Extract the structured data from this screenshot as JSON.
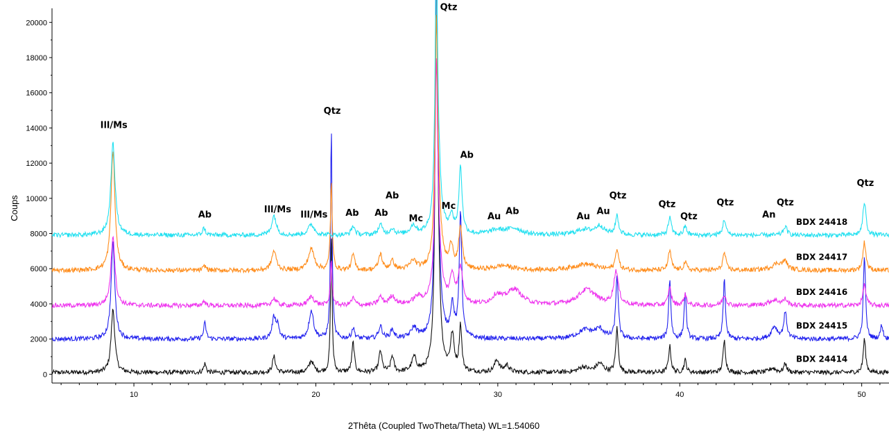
{
  "chart_data": {
    "type": "line",
    "xlabel": "2Thêta (Coupled TwoTheta/Theta) WL=1.54060",
    "ylabel": "Coups",
    "xlim": [
      5.5,
      51.5
    ],
    "ylim": [
      -500,
      20800
    ],
    "x_ticks": [
      10,
      20,
      30,
      40,
      50
    ],
    "y_ticks": [
      0,
      2000,
      4000,
      6000,
      8000,
      10000,
      12000,
      14000,
      16000,
      18000,
      20000
    ],
    "grid": false,
    "legend": "labels at right end of each trace",
    "series": [
      {
        "name": "BDX 24418",
        "color": "#22e0f0",
        "baseline": 7900,
        "peaks": [
          [
            8.85,
            5200,
            0.14
          ],
          [
            13.85,
            400,
            0.1
          ],
          [
            17.7,
            1100,
            0.15
          ],
          [
            19.75,
            600,
            0.2
          ],
          [
            22.05,
            500,
            0.12
          ],
          [
            23.55,
            550,
            0.14
          ],
          [
            24.2,
            350,
            0.14
          ],
          [
            25.35,
            500,
            0.2
          ],
          [
            26.62,
            12500,
            0.08
          ],
          [
            26.7,
            3800,
            0.18
          ],
          [
            27.45,
            900,
            0.15
          ],
          [
            27.95,
            3800,
            0.1
          ],
          [
            29.95,
            250,
            0.5
          ],
          [
            30.9,
            350,
            0.5
          ],
          [
            34.7,
            300,
            0.5
          ],
          [
            35.6,
            500,
            0.3
          ],
          [
            36.55,
            1100,
            0.1
          ],
          [
            39.45,
            1000,
            0.1
          ],
          [
            40.3,
            500,
            0.1
          ],
          [
            42.45,
            900,
            0.1
          ],
          [
            45.8,
            500,
            0.12
          ],
          [
            50.15,
            1900,
            0.1
          ]
        ]
      },
      {
        "name": "BDX 24417",
        "color": "#ff8c1a",
        "baseline": 5900,
        "peaks": [
          [
            8.85,
            6800,
            0.13
          ],
          [
            13.9,
            250,
            0.1
          ],
          [
            17.7,
            1100,
            0.15
          ],
          [
            19.75,
            1200,
            0.2
          ],
          [
            20.85,
            5000,
            0.06
          ],
          [
            22.05,
            900,
            0.1
          ],
          [
            23.55,
            900,
            0.12
          ],
          [
            24.2,
            500,
            0.14
          ],
          [
            25.35,
            500,
            0.2
          ],
          [
            26.62,
            11000,
            0.08
          ],
          [
            26.7,
            4000,
            0.18
          ],
          [
            27.45,
            1300,
            0.12
          ],
          [
            27.95,
            2300,
            0.12
          ],
          [
            30.3,
            250,
            0.6
          ],
          [
            34.8,
            350,
            0.8
          ],
          [
            36.55,
            1200,
            0.1
          ],
          [
            39.45,
            1100,
            0.1
          ],
          [
            40.3,
            450,
            0.1
          ],
          [
            42.45,
            1000,
            0.1
          ],
          [
            45.4,
            400,
            0.4
          ],
          [
            45.8,
            400,
            0.12
          ],
          [
            50.15,
            1600,
            0.1
          ]
        ]
      },
      {
        "name": "BDX 24416",
        "color": "#ee33ee",
        "baseline": 3900,
        "peaks": [
          [
            8.85,
            4000,
            0.13
          ],
          [
            13.85,
            250,
            0.1
          ],
          [
            17.7,
            400,
            0.15
          ],
          [
            19.75,
            500,
            0.2
          ],
          [
            20.85,
            2500,
            0.06
          ],
          [
            22.05,
            400,
            0.12
          ],
          [
            23.55,
            450,
            0.14
          ],
          [
            24.2,
            500,
            0.2
          ],
          [
            25.6,
            400,
            0.3
          ],
          [
            26.62,
            11000,
            0.08
          ],
          [
            26.7,
            3500,
            0.2
          ],
          [
            27.5,
            1500,
            0.15
          ],
          [
            27.95,
            2000,
            0.15
          ],
          [
            29.95,
            500,
            0.3
          ],
          [
            30.9,
            900,
            0.5
          ],
          [
            34.9,
            900,
            0.6
          ],
          [
            36.5,
            1900,
            0.15
          ],
          [
            39.45,
            1000,
            0.1
          ],
          [
            40.3,
            600,
            0.1
          ],
          [
            42.45,
            600,
            0.12
          ],
          [
            45.2,
            300,
            0.4
          ],
          [
            45.8,
            300,
            0.12
          ],
          [
            50.15,
            1200,
            0.1
          ]
        ]
      },
      {
        "name": "BDX 24415",
        "color": "#2222ee",
        "baseline": 2000,
        "peaks": [
          [
            8.85,
            5500,
            0.12
          ],
          [
            13.9,
            900,
            0.08
          ],
          [
            17.7,
            1200,
            0.12
          ],
          [
            17.9,
            700,
            0.1
          ],
          [
            19.75,
            1600,
            0.15
          ],
          [
            20.85,
            12000,
            0.05
          ],
          [
            22.05,
            600,
            0.1
          ],
          [
            23.55,
            700,
            0.12
          ],
          [
            24.2,
            500,
            0.12
          ],
          [
            25.4,
            600,
            0.2
          ],
          [
            26.62,
            20000,
            0.07
          ],
          [
            26.7,
            5000,
            0.15
          ],
          [
            27.5,
            1800,
            0.12
          ],
          [
            27.95,
            7200,
            0.08
          ],
          [
            34.8,
            500,
            0.5
          ],
          [
            35.6,
            500,
            0.3
          ],
          [
            36.55,
            3600,
            0.08
          ],
          [
            39.45,
            3400,
            0.07
          ],
          [
            40.3,
            2700,
            0.07
          ],
          [
            42.45,
            3400,
            0.07
          ],
          [
            45.2,
            700,
            0.2
          ],
          [
            45.8,
            1500,
            0.1
          ],
          [
            50.15,
            4800,
            0.07
          ],
          [
            51.1,
            800,
            0.08
          ]
        ]
      },
      {
        "name": "BDX 24414",
        "color": "#111111",
        "baseline": 100,
        "peaks": [
          [
            8.85,
            3600,
            0.12
          ],
          [
            13.9,
            500,
            0.08
          ],
          [
            17.7,
            900,
            0.1
          ],
          [
            19.75,
            650,
            0.15
          ],
          [
            20.85,
            8000,
            0.05
          ],
          [
            22.05,
            1700,
            0.08
          ],
          [
            23.55,
            1200,
            0.1
          ],
          [
            24.2,
            900,
            0.1
          ],
          [
            25.4,
            800,
            0.15
          ],
          [
            26.62,
            20000,
            0.07
          ],
          [
            26.7,
            5000,
            0.15
          ],
          [
            27.5,
            2000,
            0.12
          ],
          [
            27.95,
            2600,
            0.08
          ],
          [
            29.95,
            700,
            0.15
          ],
          [
            30.5,
            400,
            0.15
          ],
          [
            34.7,
            300,
            0.3
          ],
          [
            35.6,
            500,
            0.25
          ],
          [
            36.55,
            2500,
            0.08
          ],
          [
            39.45,
            1500,
            0.08
          ],
          [
            40.3,
            700,
            0.08
          ],
          [
            42.45,
            1800,
            0.08
          ],
          [
            45.1,
            250,
            0.2
          ],
          [
            45.8,
            500,
            0.1
          ],
          [
            50.15,
            1900,
            0.08
          ]
        ]
      }
    ],
    "peak_labels": [
      {
        "text": "Ill/Ms",
        "x": 8.9,
        "y": 14000
      },
      {
        "text": "Ab",
        "x": 13.9,
        "y": 8900
      },
      {
        "text": "Ill/Ms",
        "x": 17.9,
        "y": 9200
      },
      {
        "text": "Ill/Ms",
        "x": 19.9,
        "y": 8900
      },
      {
        "text": "Qtz",
        "x": 20.9,
        "y": 14800
      },
      {
        "text": "Ab",
        "x": 22.0,
        "y": 9000
      },
      {
        "text": "Ab",
        "x": 23.6,
        "y": 9000
      },
      {
        "text": "Ab",
        "x": 24.2,
        "y": 10000
      },
      {
        "text": "Mc",
        "x": 25.5,
        "y": 8700
      },
      {
        "text": "Qtz",
        "x": 27.3,
        "y": 20700
      },
      {
        "text": "Mc",
        "x": 27.3,
        "y": 9400
      },
      {
        "text": "Ab",
        "x": 28.3,
        "y": 12300
      },
      {
        "text": "Au",
        "x": 29.8,
        "y": 8800
      },
      {
        "text": "Ab",
        "x": 30.8,
        "y": 9100
      },
      {
        "text": "Au",
        "x": 34.7,
        "y": 8800
      },
      {
        "text": "Au",
        "x": 35.8,
        "y": 9100
      },
      {
        "text": "Qtz",
        "x": 36.6,
        "y": 10000
      },
      {
        "text": "Qtz",
        "x": 39.3,
        "y": 9500
      },
      {
        "text": "Qtz",
        "x": 40.5,
        "y": 8800
      },
      {
        "text": "Qtz",
        "x": 42.5,
        "y": 9600
      },
      {
        "text": "An",
        "x": 44.9,
        "y": 8900
      },
      {
        "text": "Qtz",
        "x": 45.8,
        "y": 9600
      },
      {
        "text": "Qtz",
        "x": 50.2,
        "y": 10700
      }
    ]
  }
}
